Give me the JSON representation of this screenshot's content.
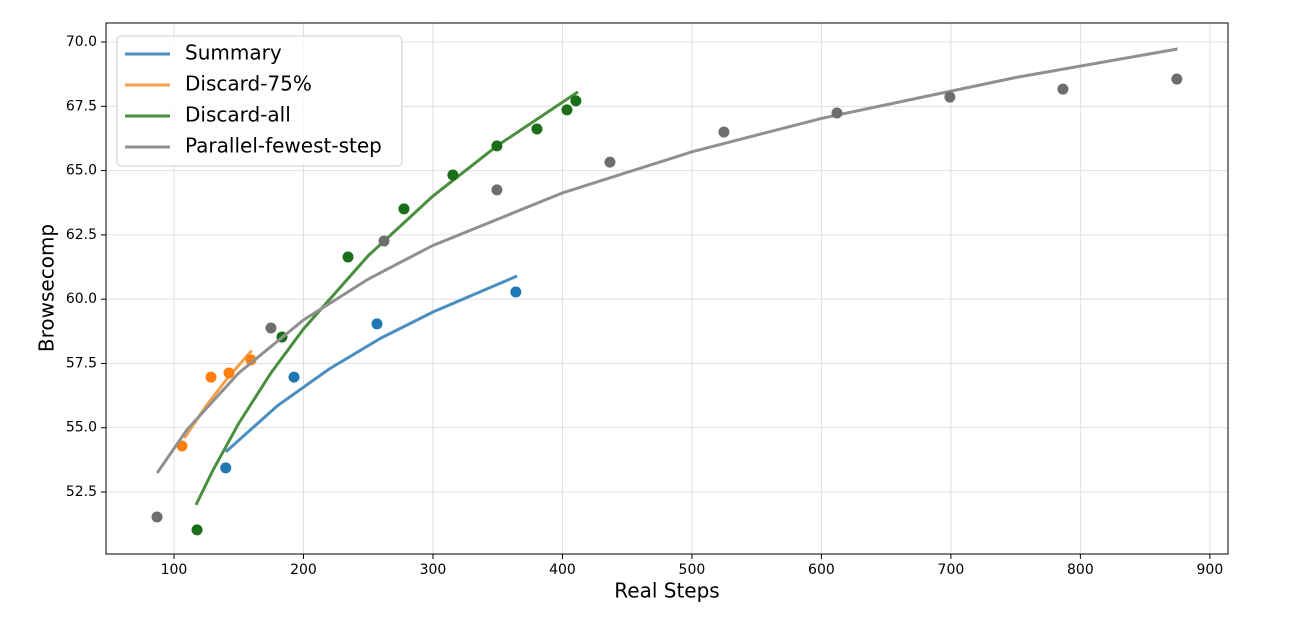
{
  "chart_data": {
    "type": "scatter",
    "xlabel": "Real Steps",
    "ylabel": "Browsecomp",
    "xlim": [
      47.5,
      914
    ],
    "ylim": [
      50.09,
      70.74
    ],
    "xticks": [
      100,
      200,
      300,
      400,
      500,
      600,
      700,
      800,
      900
    ],
    "yticks": [
      52.5,
      {
        "value": 55,
        "label": "55.0"
      },
      57.5,
      {
        "value": 60,
        "label": "60.0"
      },
      62.5,
      {
        "value": 65,
        "label": "65.0"
      },
      67.5,
      {
        "value": 70,
        "label": "70.0"
      }
    ],
    "grid": true,
    "legend": "upper left",
    "series": [
      {
        "name": "Summary",
        "color": "#1f77b4",
        "line_color": "#4a8fbf",
        "x": [
          140,
          192.7,
          256.8,
          364
        ],
        "values": [
          53.44,
          56.97,
          59.04,
          60.28
        ],
        "fit_x": [
          140,
          180,
          220,
          260,
          300,
          365
        ],
        "fit_values": [
          54.06,
          55.86,
          57.29,
          58.49,
          59.5,
          60.9
        ]
      },
      {
        "name": "Discard-75%",
        "color": "#ff7f0e",
        "line_color": "#f5a04a",
        "x": [
          106.2,
          128.6,
          142.5,
          159.5
        ],
        "values": [
          54.29,
          56.97,
          57.13,
          57.64
        ],
        "fit_x": [
          108,
          125,
          142,
          160
        ],
        "fit_values": [
          54.6,
          55.86,
          56.97,
          58.0
        ]
      },
      {
        "name": "Discard-all",
        "color": "#1a6e1a",
        "line_color": "#4a8f3f",
        "x": [
          117.8,
          183.4,
          234.4,
          277.6,
          315.4,
          349.4,
          380.3,
          403.5,
          410.4
        ],
        "values": [
          51.03,
          58.53,
          61.64,
          63.51,
          64.83,
          65.96,
          66.62,
          67.36,
          67.71
        ],
        "fit_x": [
          117,
          130,
          150,
          175,
          200,
          250,
          300,
          350,
          412
        ],
        "fit_values": [
          52.0,
          53.34,
          55.17,
          57.14,
          58.84,
          61.69,
          64.01,
          65.98,
          68.06
        ]
      },
      {
        "name": "Parallel-fewest-step",
        "color": "#6e6e6e",
        "line_color": "#909090",
        "x": [
          86.9,
          174.9,
          262.2,
          349.4,
          436.7,
          524.7,
          612,
          699.2,
          786.5,
          874.5
        ],
        "values": [
          51.53,
          58.88,
          62.26,
          64.25,
          65.33,
          66.5,
          67.24,
          67.86,
          68.17,
          68.56
        ],
        "fit_x": [
          87,
          110,
          150,
          200,
          250,
          300,
          400,
          500,
          600,
          750,
          875
        ],
        "fit_values": [
          53.24,
          54.92,
          57.13,
          59.19,
          60.78,
          62.09,
          64.13,
          65.73,
          67.03,
          68.62,
          69.73
        ]
      }
    ]
  }
}
